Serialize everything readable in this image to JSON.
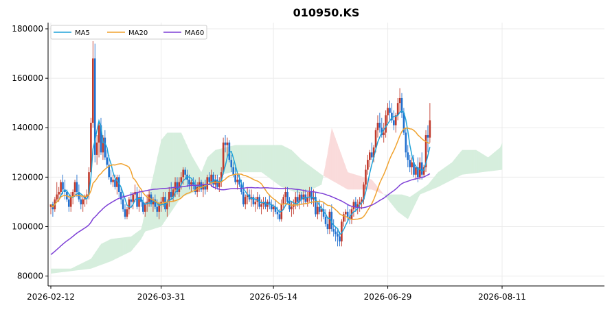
{
  "chart_data": {
    "type": "candlestick",
    "title": "010950.KS",
    "xlabel": "",
    "ylabel": "",
    "x_tick_labels": [
      "2026-02-12",
      "2026-03-31",
      "2026-05-14",
      "2026-06-29",
      "2026-08-11"
    ],
    "y_tick_labels": [
      "80000",
      "100000",
      "120000",
      "140000",
      "160000",
      "180000"
    ],
    "y_ticks": [
      80000,
      100000,
      120000,
      140000,
      160000,
      180000
    ],
    "ylim": [
      76000,
      182500
    ],
    "grid": true,
    "legend_position": "top-left",
    "up_color": "#c0392b",
    "down_color": "#1f6fcf",
    "start_price": 108000,
    "series": [
      {
        "name": "MA5",
        "color": "#1fa2d8"
      },
      {
        "name": "MA20",
        "color": "#f0a22e"
      },
      {
        "name": "MA60",
        "color": "#7d3fd6"
      }
    ],
    "ichimoku": {
      "bull_color": "#d6eedd",
      "bear_color": "#fadbdb",
      "span_a": [
        [
          0,
          83000
        ],
        [
          10,
          83000
        ],
        [
          20,
          87000
        ],
        [
          25,
          93000
        ],
        [
          30,
          95000
        ],
        [
          40,
          96000
        ],
        [
          45,
          99000
        ],
        [
          47,
          106000
        ],
        [
          55,
          135000
        ],
        [
          58,
          138000
        ],
        [
          65,
          138000
        ],
        [
          70,
          129000
        ],
        [
          75,
          122000
        ],
        [
          78,
          128000
        ],
        [
          82,
          131000
        ],
        [
          92,
          133000
        ],
        [
          115,
          133000
        ],
        [
          120,
          131000
        ],
        [
          125,
          127000
        ],
        [
          135,
          121000
        ],
        [
          148,
          115000
        ],
        [
          160,
          115000
        ],
        [
          166,
          113000
        ],
        [
          175,
          113000
        ],
        [
          179,
          112000
        ],
        [
          188,
          117000
        ],
        [
          193,
          122000
        ],
        [
          200,
          126000
        ],
        [
          205,
          131000
        ],
        [
          212,
          131000
        ],
        [
          218,
          128000
        ],
        [
          224,
          132000
        ],
        [
          225,
          134000
        ]
      ],
      "span_b": [
        [
          0,
          81000
        ],
        [
          20,
          83000
        ],
        [
          30,
          86000
        ],
        [
          40,
          90000
        ],
        [
          45,
          95000
        ],
        [
          47,
          98000
        ],
        [
          55,
          100000
        ],
        [
          65,
          112000
        ],
        [
          75,
          115000
        ],
        [
          80,
          120000
        ],
        [
          90,
          122000
        ],
        [
          105,
          122000
        ],
        [
          115,
          116000
        ],
        [
          125,
          113000
        ],
        [
          135,
          117000
        ],
        [
          138,
          130000
        ],
        [
          140,
          140000
        ],
        [
          148,
          122000
        ],
        [
          160,
          119000
        ],
        [
          166,
          113000
        ],
        [
          173,
          106000
        ],
        [
          178,
          103000
        ],
        [
          184,
          113000
        ],
        [
          193,
          116000
        ],
        [
          205,
          121000
        ],
        [
          225,
          123000
        ]
      ]
    },
    "candles": [
      [
        108000,
        109000,
        105000,
        109000
      ],
      [
        109000,
        110000,
        104000,
        107000
      ],
      [
        107000,
        112000,
        106000,
        111000
      ],
      [
        111000,
        118000,
        110000,
        113000
      ],
      [
        113000,
        116000,
        110000,
        114000
      ],
      [
        114000,
        119000,
        112000,
        118000
      ],
      [
        118000,
        121000,
        113000,
        115000
      ],
      [
        115000,
        119000,
        111000,
        114000
      ],
      [
        114000,
        115000,
        110000,
        111000
      ],
      [
        111000,
        113000,
        106000,
        108000
      ],
      [
        108000,
        114000,
        106000,
        112000
      ],
      [
        112000,
        115000,
        109000,
        114000
      ],
      [
        114000,
        119000,
        112000,
        118000
      ],
      [
        118000,
        121000,
        112000,
        114000
      ],
      [
        114000,
        117000,
        110000,
        111000
      ],
      [
        111000,
        113000,
        107000,
        109000
      ],
      [
        109000,
        112000,
        106000,
        111000
      ],
      [
        111000,
        113000,
        108000,
        112000
      ],
      [
        112000,
        115000,
        109000,
        113000
      ],
      [
        113000,
        124000,
        111000,
        122000
      ],
      [
        122000,
        144000,
        121000,
        142000
      ],
      [
        142000,
        175000,
        140000,
        168000
      ],
      [
        168000,
        174000,
        126000,
        129000
      ],
      [
        129000,
        137000,
        125000,
        134000
      ],
      [
        134000,
        142000,
        128000,
        141000
      ],
      [
        141000,
        144000,
        129000,
        130000
      ],
      [
        130000,
        137000,
        127000,
        136000
      ],
      [
        136000,
        139000,
        127000,
        128000
      ],
      [
        128000,
        131000,
        124000,
        125000
      ],
      [
        125000,
        129000,
        119000,
        120000
      ],
      [
        120000,
        123000,
        117000,
        118000
      ],
      [
        118000,
        121000,
        116000,
        119000
      ],
      [
        119000,
        121000,
        115000,
        116000
      ],
      [
        116000,
        121000,
        113000,
        120000
      ],
      [
        120000,
        121000,
        112000,
        114000
      ],
      [
        114000,
        116000,
        109000,
        111000
      ],
      [
        111000,
        113000,
        106000,
        107000
      ],
      [
        107000,
        109000,
        103000,
        104000
      ],
      [
        104000,
        108000,
        103000,
        107000
      ],
      [
        107000,
        112000,
        105000,
        111000
      ],
      [
        111000,
        114000,
        108000,
        110000
      ],
      [
        110000,
        114000,
        107000,
        113000
      ],
      [
        113000,
        117000,
        110000,
        114000
      ],
      [
        114000,
        116000,
        107000,
        108000
      ],
      [
        108000,
        115000,
        106000,
        112000
      ],
      [
        112000,
        114000,
        108000,
        110000
      ],
      [
        110000,
        112000,
        105000,
        106000
      ],
      [
        106000,
        110000,
        104000,
        109000
      ],
      [
        109000,
        113000,
        106000,
        110000
      ],
      [
        110000,
        115000,
        108000,
        113000
      ],
      [
        113000,
        114000,
        108000,
        109000
      ],
      [
        109000,
        112000,
        106000,
        111000
      ],
      [
        111000,
        113000,
        107000,
        108000
      ],
      [
        108000,
        111000,
        104000,
        106000
      ],
      [
        106000,
        110000,
        103000,
        109000
      ],
      [
        109000,
        112000,
        106000,
        110000
      ],
      [
        110000,
        114000,
        108000,
        112000
      ],
      [
        112000,
        114000,
        106000,
        107000
      ],
      [
        107000,
        111000,
        104000,
        110000
      ],
      [
        110000,
        116000,
        108000,
        114000
      ],
      [
        114000,
        118000,
        111000,
        112000
      ],
      [
        112000,
        116000,
        110000,
        115000
      ],
      [
        115000,
        120000,
        112000,
        118000
      ],
      [
        118000,
        120000,
        113000,
        114000
      ],
      [
        114000,
        120000,
        112000,
        118000
      ],
      [
        118000,
        122000,
        115000,
        120000
      ],
      [
        120000,
        124000,
        117000,
        123000
      ],
      [
        123000,
        124000,
        119000,
        121000
      ],
      [
        121000,
        123000,
        116000,
        119000
      ],
      [
        119000,
        121000,
        115000,
        117000
      ],
      [
        117000,
        119000,
        114000,
        118000
      ],
      [
        118000,
        120000,
        115000,
        117000
      ],
      [
        117000,
        119000,
        113000,
        114000
      ],
      [
        114000,
        118000,
        112000,
        116000
      ],
      [
        116000,
        120000,
        114000,
        118000
      ],
      [
        118000,
        119000,
        114000,
        115000
      ],
      [
        115000,
        118000,
        112000,
        117000
      ],
      [
        117000,
        119000,
        113000,
        115000
      ],
      [
        115000,
        121000,
        114000,
        120000
      ],
      [
        120000,
        122000,
        117000,
        118000
      ],
      [
        118000,
        123000,
        116000,
        121000
      ],
      [
        121000,
        122000,
        116000,
        117000
      ],
      [
        117000,
        121000,
        115000,
        119000
      ],
      [
        119000,
        121000,
        115000,
        116000
      ],
      [
        116000,
        120000,
        114000,
        118000
      ],
      [
        118000,
        124000,
        116000,
        122000
      ],
      [
        122000,
        136000,
        121000,
        134000
      ],
      [
        134000,
        137000,
        130000,
        133000
      ],
      [
        133000,
        136000,
        128000,
        134000
      ],
      [
        134000,
        135000,
        126000,
        127000
      ],
      [
        127000,
        129000,
        122000,
        124000
      ],
      [
        124000,
        126000,
        120000,
        121000
      ],
      [
        121000,
        124000,
        117000,
        118000
      ],
      [
        118000,
        121000,
        115000,
        119000
      ],
      [
        119000,
        121000,
        116000,
        117000
      ],
      [
        117000,
        119000,
        113000,
        114000
      ],
      [
        114000,
        118000,
        108000,
        109000
      ],
      [
        109000,
        113000,
        107000,
        112000
      ],
      [
        112000,
        116000,
        109000,
        113000
      ],
      [
        113000,
        115000,
        110000,
        111000
      ],
      [
        111000,
        115000,
        108000,
        112000
      ],
      [
        112000,
        113000,
        108000,
        109000
      ],
      [
        109000,
        112000,
        106000,
        110000
      ],
      [
        110000,
        114000,
        107000,
        112000
      ],
      [
        112000,
        113000,
        107000,
        108000
      ],
      [
        108000,
        111000,
        105000,
        109000
      ],
      [
        109000,
        112000,
        107000,
        110000
      ],
      [
        110000,
        112000,
        107000,
        108000
      ],
      [
        108000,
        111000,
        106000,
        110000
      ],
      [
        110000,
        113000,
        107000,
        109000
      ],
      [
        109000,
        111000,
        106000,
        107000
      ],
      [
        107000,
        109000,
        104000,
        108000
      ],
      [
        108000,
        111000,
        105000,
        106000
      ],
      [
        106000,
        108000,
        103000,
        105000
      ],
      [
        105000,
        107000,
        102000,
        103000
      ],
      [
        103000,
        111000,
        102000,
        109000
      ],
      [
        109000,
        113000,
        107000,
        112000
      ],
      [
        112000,
        116000,
        109000,
        114000
      ],
      [
        114000,
        116000,
        109000,
        110000
      ],
      [
        110000,
        112000,
        106000,
        107000
      ],
      [
        107000,
        110000,
        104000,
        108000
      ],
      [
        108000,
        111000,
        105000,
        109000
      ],
      [
        109000,
        114000,
        107000,
        112000
      ],
      [
        112000,
        115000,
        108000,
        110000
      ],
      [
        110000,
        114000,
        107000,
        113000
      ],
      [
        113000,
        114000,
        109000,
        111000
      ],
      [
        111000,
        115000,
        108000,
        113000
      ],
      [
        113000,
        115000,
        109000,
        110000
      ],
      [
        110000,
        114000,
        108000,
        112000
      ],
      [
        112000,
        116000,
        110000,
        114000
      ],
      [
        114000,
        116000,
        109000,
        111000
      ],
      [
        111000,
        115000,
        108000,
        112000
      ],
      [
        112000,
        114000,
        104000,
        105000
      ],
      [
        105000,
        110000,
        103000,
        108000
      ],
      [
        108000,
        111000,
        105000,
        106000
      ],
      [
        106000,
        109000,
        102000,
        107000
      ],
      [
        107000,
        110000,
        103000,
        104000
      ],
      [
        104000,
        107000,
        100000,
        101000
      ],
      [
        101000,
        104000,
        97000,
        99000
      ],
      [
        99000,
        107000,
        97000,
        106000
      ],
      [
        106000,
        109000,
        98000,
        99000
      ],
      [
        99000,
        103000,
        96000,
        98000
      ],
      [
        98000,
        100000,
        94000,
        97000
      ],
      [
        97000,
        99000,
        92000,
        96000
      ],
      [
        96000,
        98000,
        92000,
        94000
      ],
      [
        94000,
        103000,
        92000,
        102000
      ],
      [
        102000,
        106000,
        100000,
        105000
      ],
      [
        105000,
        107000,
        102000,
        106000
      ],
      [
        106000,
        109000,
        102000,
        104000
      ],
      [
        104000,
        107000,
        101000,
        103000
      ],
      [
        103000,
        108000,
        101000,
        107000
      ],
      [
        107000,
        111000,
        104000,
        110000
      ],
      [
        110000,
        112000,
        106000,
        108000
      ],
      [
        108000,
        111000,
        105000,
        109000
      ],
      [
        109000,
        112000,
        106000,
        110000
      ],
      [
        110000,
        112000,
        107000,
        111000
      ],
      [
        111000,
        118000,
        109000,
        117000
      ],
      [
        117000,
        125000,
        115000,
        123000
      ],
      [
        123000,
        129000,
        121000,
        127000
      ],
      [
        127000,
        131000,
        124000,
        130000
      ],
      [
        130000,
        134000,
        127000,
        128000
      ],
      [
        128000,
        133000,
        126000,
        132000
      ],
      [
        132000,
        140000,
        130000,
        139000
      ],
      [
        139000,
        145000,
        136000,
        142000
      ],
      [
        142000,
        146000,
        138000,
        140000
      ],
      [
        140000,
        144000,
        136000,
        137000
      ],
      [
        137000,
        142000,
        134000,
        138000
      ],
      [
        138000,
        147000,
        136000,
        145000
      ],
      [
        145000,
        150000,
        141000,
        148000
      ],
      [
        148000,
        151000,
        143000,
        146000
      ],
      [
        146000,
        150000,
        142000,
        143000
      ],
      [
        143000,
        147000,
        139000,
        141000
      ],
      [
        141000,
        146000,
        138000,
        145000
      ],
      [
        145000,
        152000,
        143000,
        150000
      ],
      [
        150000,
        156000,
        146000,
        152000
      ],
      [
        152000,
        154000,
        144000,
        146000
      ],
      [
        146000,
        148000,
        137000,
        138000
      ],
      [
        138000,
        140000,
        128000,
        130000
      ],
      [
        130000,
        133000,
        124000,
        127000
      ],
      [
        127000,
        129000,
        122000,
        124000
      ],
      [
        124000,
        128000,
        121000,
        126000
      ],
      [
        126000,
        129000,
        120000,
        121000
      ],
      [
        121000,
        125000,
        119000,
        124000
      ],
      [
        124000,
        128000,
        118000,
        120000
      ],
      [
        120000,
        128000,
        119000,
        126000
      ],
      [
        126000,
        130000,
        119000,
        121000
      ],
      [
        121000,
        125000,
        120000,
        124000
      ],
      [
        124000,
        139000,
        122000,
        137000
      ],
      [
        137000,
        141000,
        130000,
        136000
      ],
      [
        136000,
        150000,
        134000,
        143000
      ]
    ]
  }
}
